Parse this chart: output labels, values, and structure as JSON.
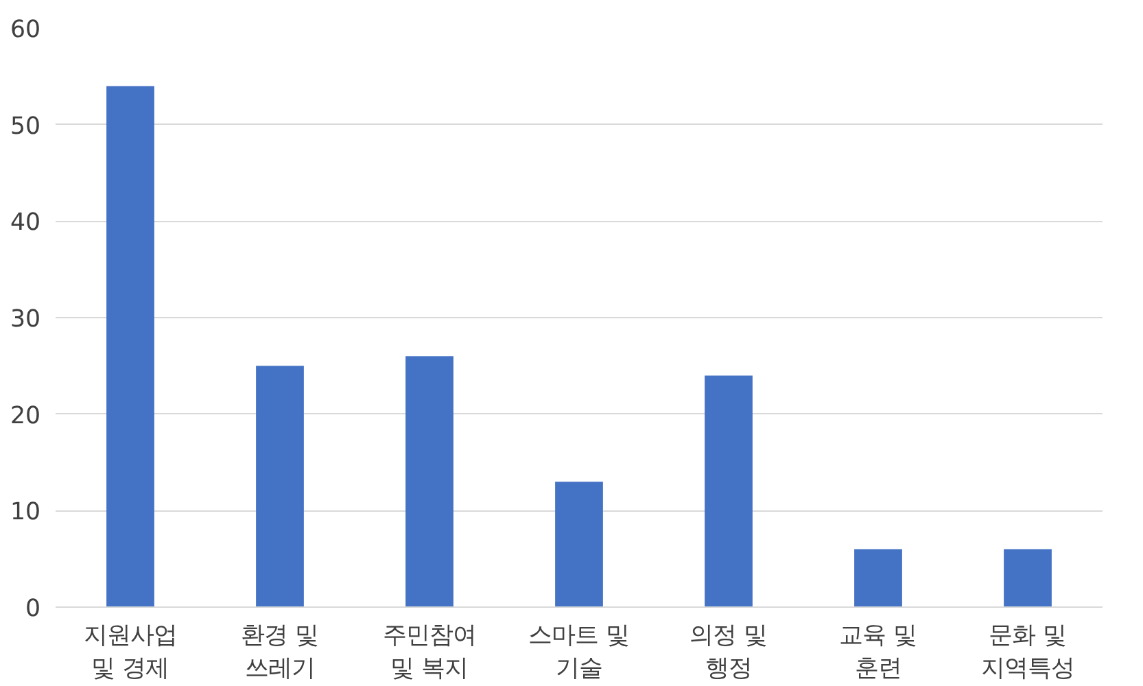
{
  "chart_data": {
    "type": "bar",
    "categories": [
      "지원사업\n및 경제",
      "환경 및\n쓰레기",
      "주민참여\n및 복지",
      "스마트 및\n기술",
      "의정 및\n행정",
      "교육 및\n훈련",
      "문화 및\n지역특성"
    ],
    "values": [
      54,
      25,
      26,
      13,
      24,
      6,
      6
    ],
    "color": "#4472c4",
    "ylim": [
      0,
      60
    ],
    "yticks": [
      0,
      10,
      20,
      30,
      40,
      50,
      60
    ],
    "grid": "y"
  }
}
